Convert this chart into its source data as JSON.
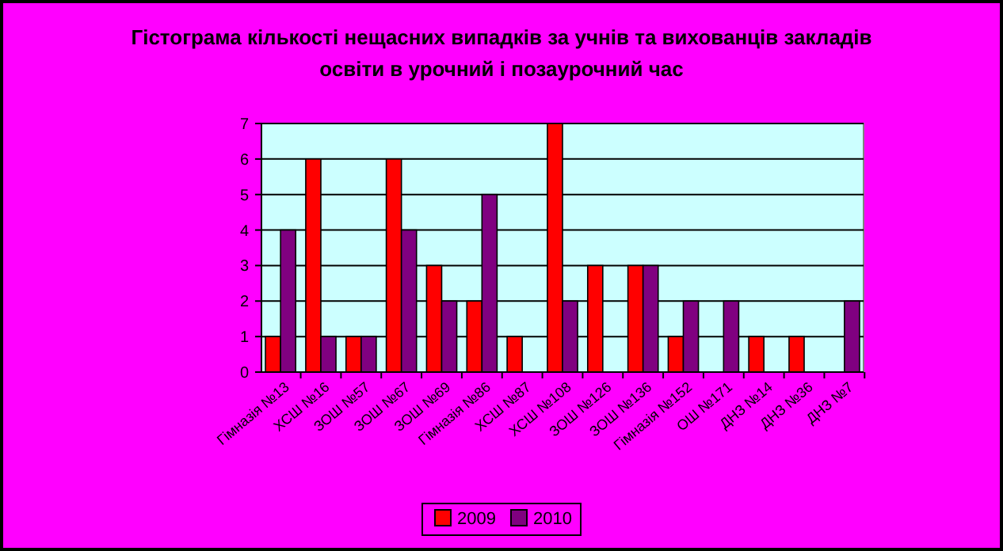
{
  "chart_data": {
    "type": "bar",
    "title": "Гістограма кількості нещасних випадків за учнів та вихованців закладів освіти в урочний і позаурочний час",
    "categories": [
      "Гімназія №13",
      "ХСШ №16",
      "ЗОШ №57",
      "ЗОШ №67",
      "ЗОШ №69",
      "Гімназія №86",
      "ХСШ №87",
      "ХСШ №108",
      "ЗОШ №126",
      "ЗОШ №136",
      "Гімназія №152",
      "ОШ №171",
      "ДНЗ №14",
      "ДНЗ №36",
      "ДНЗ №7"
    ],
    "series": [
      {
        "name": "2009",
        "color": "#ff0000",
        "values": [
          1,
          6,
          1,
          6,
          3,
          2,
          1,
          7,
          3,
          3,
          1,
          0,
          1,
          1,
          null
        ]
      },
      {
        "name": "2010",
        "color": "#800080",
        "values": [
          4,
          1,
          1,
          4,
          2,
          5,
          0,
          2,
          0,
          3,
          2,
          2,
          null,
          null,
          2
        ]
      }
    ],
    "ylim": [
      0,
      7
    ],
    "yticks": [
      0,
      1,
      2,
      3,
      4,
      5,
      6,
      7
    ],
    "grid": "y",
    "legend": "bottom"
  }
}
